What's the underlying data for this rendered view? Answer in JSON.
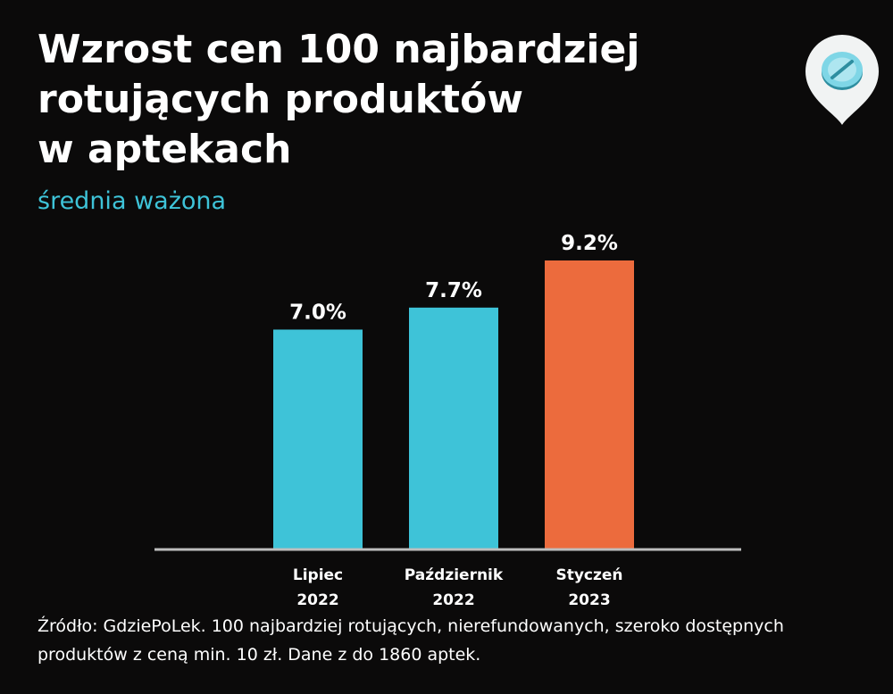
{
  "title_lines": [
    "Wzrost cen 100 najbardziej",
    "rotujących produktów",
    "w aptekach"
  ],
  "subtitle": "średnia ważona",
  "source": "Źródło: GdziePoLek. 100 najbardziej rotujących, nierefundowanych, szeroko dostępnych produktów z ceną min. 10 zł. Dane z do 1860 aptek.",
  "logo": {
    "icon": "pill-map-pin-icon"
  },
  "colors": {
    "accent": "#3ec3d8",
    "highlight": "#ec6b3d",
    "background": "#0b0a0a",
    "axis": "#bdbdbd"
  },
  "chart_data": {
    "type": "bar",
    "title": "Wzrost cen 100 najbardziej rotujących produktów w aptekach",
    "subtitle": "średnia ważona",
    "categories": [
      [
        "Lipiec",
        "2022"
      ],
      [
        "Październik",
        "2022"
      ],
      [
        "Styczeń",
        "2023"
      ]
    ],
    "values": [
      7.0,
      7.7,
      9.2
    ],
    "value_labels": [
      "7.0%",
      "7.7%",
      "9.2%"
    ],
    "bar_colors": [
      "#3ec3d8",
      "#3ec3d8",
      "#ec6b3d"
    ],
    "ylim": [
      0,
      9.2
    ],
    "grid": false,
    "xlabel": "",
    "ylabel": ""
  }
}
